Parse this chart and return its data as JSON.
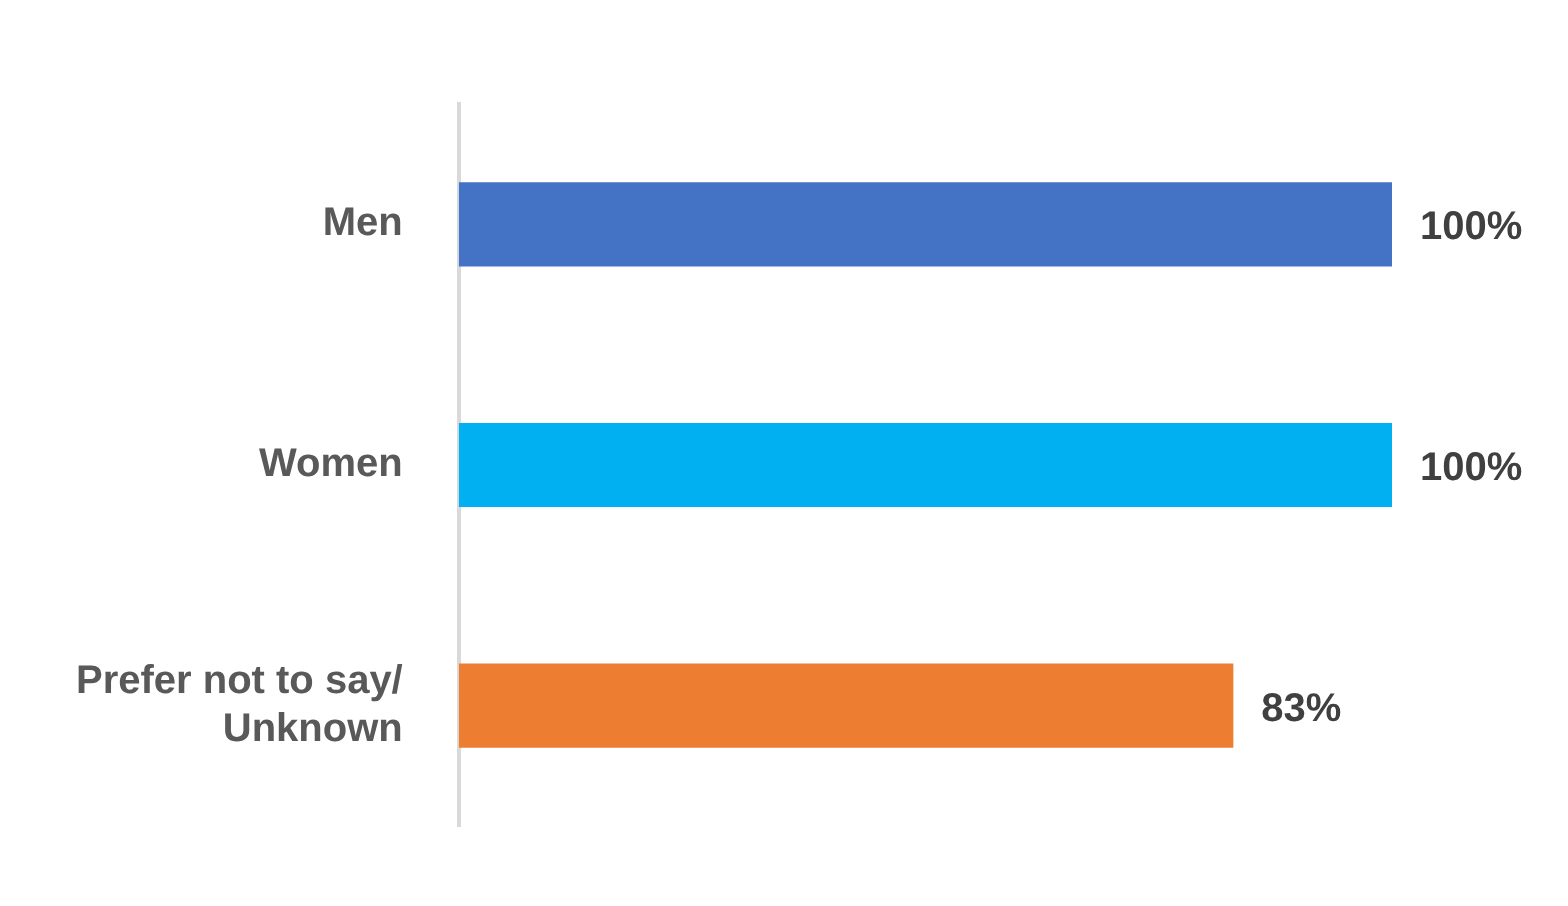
{
  "chart_data": {
    "type": "bar",
    "orientation": "horizontal",
    "categories": [
      "Men",
      "Women",
      "Prefer not to say/ Unknown"
    ],
    "values": [
      100,
      100,
      83
    ],
    "colors": [
      "#4472c4",
      "#00b0f0",
      "#ed7d31"
    ],
    "value_labels": [
      "100%",
      "100%",
      "83%"
    ],
    "legend": false,
    "tick_labels": "y"
  }
}
